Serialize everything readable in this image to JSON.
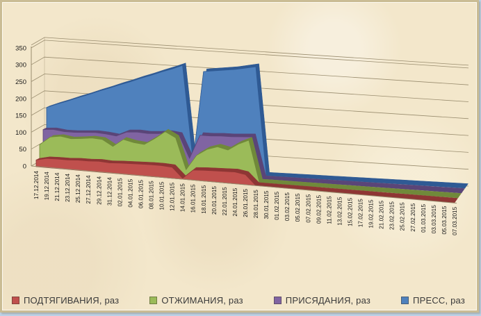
{
  "colors": {
    "background": "#f3e7cb",
    "frame_border": "#cabc94",
    "gridline": "#998c6e",
    "axis_text": "#1a1a1a",
    "legend_text": "#3a3a3a",
    "page_edge": "#bcd2e8"
  },
  "chart_data": {
    "type": "area",
    "projection": "3d",
    "title": "",
    "xlabel": "",
    "ylabel": "",
    "ylim": [
      0,
      350
    ],
    "yticks": [
      0,
      50,
      100,
      150,
      200,
      250,
      300,
      350
    ],
    "grid": true,
    "legend_position": "bottom",
    "categories": [
      "17.12.2014",
      "19.12.2014",
      "21.12.2014",
      "23.12.2014",
      "25.12.2014",
      "27.12.2014",
      "29.12.2014",
      "31.12.2014",
      "02.01.2015",
      "04.01.2015",
      "06.01.2015",
      "08.01.2015",
      "10.01.2015",
      "12.01.2015",
      "14.01.2015",
      "16.01.2015",
      "18.01.2015",
      "20.01.2015",
      "22.01.2015",
      "24.01.2015",
      "26.01.2015",
      "28.01.2015",
      "30.01.2015",
      "01.02.2015",
      "03.02.2015",
      "05.02.2015",
      "07.02.2015",
      "09.02.2015",
      "11.02.2015",
      "13.02.2015",
      "15.02.2015",
      "17.02.2015",
      "19.02.2015",
      "21.02.2015",
      "23.02.2015",
      "25.02.2015",
      "27.02.2015",
      "01.03.2015",
      "03.03.2015",
      "05.03.2015",
      "07.03.2015"
    ],
    "series": [
      {
        "name": "ПОДТЯГИВАНИЯ, раз",
        "color": "#c0504d",
        "edge": "#8e3634",
        "values": [
          20,
          27,
          28,
          28,
          30,
          30,
          32,
          30,
          32,
          33,
          34,
          35,
          35,
          33,
          3,
          30,
          32,
          33,
          34,
          35,
          30,
          0,
          0,
          0,
          0,
          0,
          0,
          0,
          0,
          0,
          0,
          0,
          0,
          0,
          0,
          0,
          0,
          0,
          0,
          0,
          0
        ]
      },
      {
        "name": "ОТЖИМАНИЯ, раз",
        "color": "#9bbb59",
        "edge": "#70893a",
        "values": [
          60,
          85,
          90,
          85,
          88,
          92,
          90,
          72,
          95,
          88,
          85,
          105,
          128,
          112,
          20,
          65,
          85,
          95,
          88,
          108,
          122,
          0,
          0,
          0,
          0,
          0,
          0,
          0,
          0,
          0,
          0,
          0,
          0,
          0,
          0,
          0,
          0,
          0,
          0,
          0,
          0
        ]
      },
      {
        "name": "ПРИСЯДАНИЯ, раз",
        "color": "#8064a2",
        "edge": "#5a4578",
        "values": [
          100,
          102,
          98,
          98,
          100,
          102,
          100,
          96,
          110,
          112,
          110,
          112,
          116,
          112,
          45,
          116,
          116,
          118,
          118,
          120,
          122,
          0,
          0,
          0,
          0,
          0,
          0,
          0,
          0,
          0,
          0,
          0,
          0,
          0,
          0,
          0,
          0,
          0,
          0,
          0,
          0
        ]
      },
      {
        "name": "ПРЕСС, раз",
        "color": "#4f81bd",
        "edge": "#2f5a94",
        "values": [
          160,
          172,
          183,
          195,
          206,
          218,
          229,
          241,
          252,
          264,
          275,
          287,
          298,
          310,
          28,
          296,
          300,
          304,
          308,
          314,
          320,
          0,
          0,
          0,
          0,
          0,
          0,
          0,
          0,
          0,
          0,
          0,
          0,
          0,
          0,
          0,
          0,
          0,
          0,
          0,
          0
        ]
      }
    ]
  }
}
